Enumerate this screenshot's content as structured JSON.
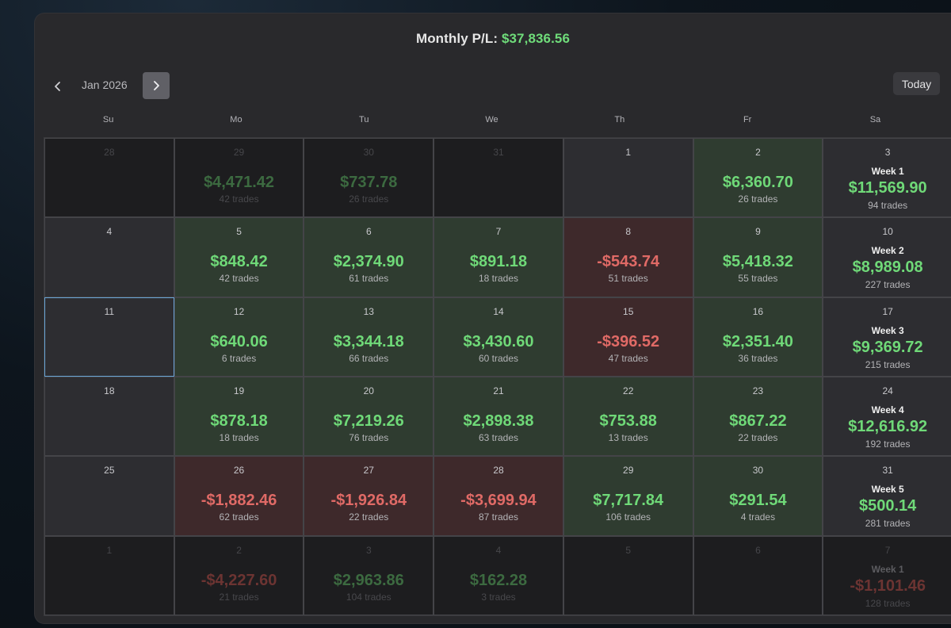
{
  "header": {
    "label": "Monthly P/L:",
    "value": "$37,836.56"
  },
  "nav": {
    "month": "Jan 2026",
    "today_label": "Today",
    "prev_icon": "chevron-left-icon",
    "next_icon": "chevron-right-icon"
  },
  "weekdays": [
    "Su",
    "Mo",
    "Tu",
    "We",
    "Th",
    "Fr",
    "Sa"
  ],
  "colors": {
    "positive": "#6fd978",
    "negative": "#e06a66",
    "selected_border": "#6aa6d6"
  },
  "weeks": [
    [
      {
        "day": "28",
        "state": "dim"
      },
      {
        "day": "29",
        "state": "dim",
        "pl": "$4,471.42",
        "sign": "pos",
        "trades": "42 trades"
      },
      {
        "day": "30",
        "state": "dim",
        "pl": "$737.78",
        "sign": "pos",
        "trades": "26 trades"
      },
      {
        "day": "31",
        "state": "dim"
      },
      {
        "day": "1",
        "state": "none"
      },
      {
        "day": "2",
        "state": "green",
        "pl": "$6,360.70",
        "sign": "pos",
        "trades": "26 trades"
      },
      {
        "day": "3",
        "state": "week",
        "week": "Week 1",
        "pl": "$11,569.90",
        "sign": "pos",
        "trades": "94 trades"
      }
    ],
    [
      {
        "day": "4",
        "state": "none"
      },
      {
        "day": "5",
        "state": "green",
        "pl": "$848.42",
        "sign": "pos",
        "trades": "42 trades"
      },
      {
        "day": "6",
        "state": "green",
        "pl": "$2,374.90",
        "sign": "pos",
        "trades": "61 trades"
      },
      {
        "day": "7",
        "state": "green",
        "pl": "$891.18",
        "sign": "pos",
        "trades": "18 trades"
      },
      {
        "day": "8",
        "state": "red",
        "pl": "-$543.74",
        "sign": "neg",
        "trades": "51 trades"
      },
      {
        "day": "9",
        "state": "green",
        "pl": "$5,418.32",
        "sign": "pos",
        "trades": "55 trades"
      },
      {
        "day": "10",
        "state": "week",
        "week": "Week 2",
        "pl": "$8,989.08",
        "sign": "pos",
        "trades": "227 trades"
      }
    ],
    [
      {
        "day": "11",
        "state": "none",
        "selected": true
      },
      {
        "day": "12",
        "state": "green",
        "pl": "$640.06",
        "sign": "pos",
        "trades": "6 trades"
      },
      {
        "day": "13",
        "state": "green",
        "pl": "$3,344.18",
        "sign": "pos",
        "trades": "66 trades"
      },
      {
        "day": "14",
        "state": "green",
        "pl": "$3,430.60",
        "sign": "pos",
        "trades": "60 trades"
      },
      {
        "day": "15",
        "state": "red",
        "pl": "-$396.52",
        "sign": "neg",
        "trades": "47 trades"
      },
      {
        "day": "16",
        "state": "green",
        "pl": "$2,351.40",
        "sign": "pos",
        "trades": "36 trades"
      },
      {
        "day": "17",
        "state": "week",
        "week": "Week 3",
        "pl": "$9,369.72",
        "sign": "pos",
        "trades": "215 trades"
      }
    ],
    [
      {
        "day": "18",
        "state": "none"
      },
      {
        "day": "19",
        "state": "green",
        "pl": "$878.18",
        "sign": "pos",
        "trades": "18 trades"
      },
      {
        "day": "20",
        "state": "green",
        "pl": "$7,219.26",
        "sign": "pos",
        "trades": "76 trades"
      },
      {
        "day": "21",
        "state": "green",
        "pl": "$2,898.38",
        "sign": "pos",
        "trades": "63 trades"
      },
      {
        "day": "22",
        "state": "green",
        "pl": "$753.88",
        "sign": "pos",
        "trades": "13 trades"
      },
      {
        "day": "23",
        "state": "green",
        "pl": "$867.22",
        "sign": "pos",
        "trades": "22 trades"
      },
      {
        "day": "24",
        "state": "week",
        "week": "Week 4",
        "pl": "$12,616.92",
        "sign": "pos",
        "trades": "192 trades"
      }
    ],
    [
      {
        "day": "25",
        "state": "none"
      },
      {
        "day": "26",
        "state": "red",
        "pl": "-$1,882.46",
        "sign": "neg",
        "trades": "62 trades"
      },
      {
        "day": "27",
        "state": "red",
        "pl": "-$1,926.84",
        "sign": "neg",
        "trades": "22 trades"
      },
      {
        "day": "28",
        "state": "red",
        "pl": "-$3,699.94",
        "sign": "neg",
        "trades": "87 trades"
      },
      {
        "day": "29",
        "state": "green",
        "pl": "$7,717.84",
        "sign": "pos",
        "trades": "106 trades"
      },
      {
        "day": "30",
        "state": "green",
        "pl": "$291.54",
        "sign": "pos",
        "trades": "4 trades"
      },
      {
        "day": "31",
        "state": "week",
        "week": "Week 5",
        "pl": "$500.14",
        "sign": "pos",
        "trades": "281 trades"
      }
    ],
    [
      {
        "day": "1",
        "state": "dim"
      },
      {
        "day": "2",
        "state": "dim",
        "pl": "-$4,227.60",
        "sign": "neg",
        "trades": "21 trades"
      },
      {
        "day": "3",
        "state": "dim",
        "pl": "$2,963.86",
        "sign": "pos",
        "trades": "104 trades"
      },
      {
        "day": "4",
        "state": "dim",
        "pl": "$162.28",
        "sign": "pos",
        "trades": "3 trades"
      },
      {
        "day": "5",
        "state": "dim"
      },
      {
        "day": "6",
        "state": "dim"
      },
      {
        "day": "7",
        "state": "dimweek",
        "week": "Week 1",
        "pl": "-$1,101.46",
        "sign": "neg",
        "trades": "128 trades"
      }
    ]
  ]
}
